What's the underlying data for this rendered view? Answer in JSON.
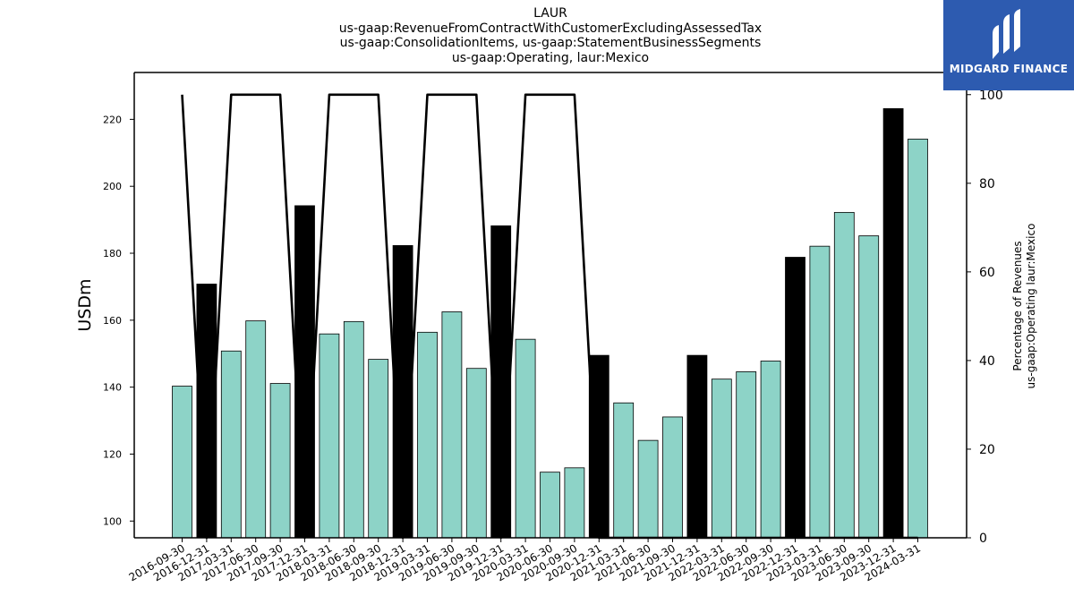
{
  "title_lines": [
    "LAUR",
    "us-gaap:RevenueFromContractWithCustomerExcludingAssessedTax",
    "us-gaap:ConsolidationItems, us-gaap:StatementBusinessSegments",
    "us-gaap:Operating, laur:Mexico"
  ],
  "logo": {
    "text": "MIDGARD FINANCE",
    "color": "#2d5bb0"
  },
  "chart_data": {
    "type": "bar",
    "categories": [
      "2016-09-30",
      "2016-12-31",
      "2017-03-31",
      "2017-06-30",
      "2017-09-30",
      "2017-12-31",
      "2018-03-31",
      "2018-06-30",
      "2018-09-30",
      "2018-12-31",
      "2019-03-31",
      "2019-06-30",
      "2019-09-30",
      "2019-12-31",
      "2020-03-31",
      "2020-06-30",
      "2020-09-30",
      "2020-12-31",
      "2021-03-31",
      "2021-06-30",
      "2021-09-30",
      "2021-12-31",
      "2022-03-31",
      "2022-06-30",
      "2022-09-30",
      "2022-12-31",
      "2023-03-31",
      "2023-06-30",
      "2023-09-30",
      "2023-12-31",
      "2024-03-31"
    ],
    "series": [
      {
        "axis": "left",
        "values": [
          140.3,
          170.8,
          150.8,
          159.8,
          141.1,
          194.2,
          155.9,
          159.6,
          148.3,
          182.3,
          156.4,
          162.5,
          145.6,
          188.2,
          154.3,
          114.6,
          115.9,
          149.5,
          135.3,
          124.1,
          131.1,
          149.5,
          142.4,
          144.6,
          147.8,
          178.8,
          182.1,
          192.2,
          185.2,
          223.2,
          214.1
        ],
        "highlight": [
          false,
          true,
          false,
          false,
          false,
          true,
          false,
          false,
          false,
          true,
          false,
          false,
          false,
          true,
          false,
          false,
          false,
          true,
          false,
          false,
          false,
          true,
          false,
          false,
          false,
          true,
          false,
          false,
          false,
          true,
          false
        ]
      },
      {
        "axis": "right",
        "type": "line",
        "values": [
          100,
          0,
          100,
          100,
          100,
          0,
          100,
          100,
          100,
          0,
          100,
          100,
          100,
          0,
          100,
          100,
          100,
          0,
          0,
          0,
          0,
          0,
          0,
          0,
          0,
          0,
          0,
          0,
          0,
          0,
          0
        ]
      }
    ],
    "ylabel": "USDm",
    "ylim": [
      95,
      234
    ],
    "yticks": [
      100,
      120,
      140,
      160,
      180,
      200,
      220
    ],
    "y2label_lines": [
      "Percentage of Revenues",
      "us-gaap:Operating laur:Mexico"
    ],
    "y2lim": [
      0,
      105
    ],
    "y2ticks": [
      0,
      20,
      40,
      60,
      80,
      100
    ],
    "colors": {
      "bar": "#8dd3c7",
      "highlight": "#000000",
      "line": "#000000"
    }
  }
}
